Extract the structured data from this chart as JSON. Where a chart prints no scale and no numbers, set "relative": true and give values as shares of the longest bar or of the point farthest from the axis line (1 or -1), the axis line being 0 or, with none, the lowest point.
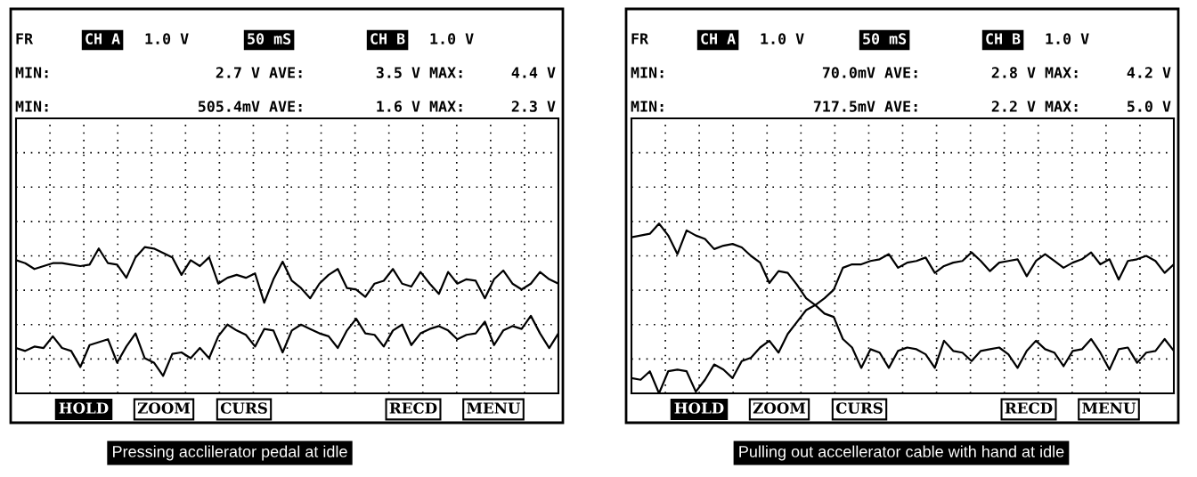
{
  "chart_data": [
    {
      "type": "line",
      "title": "Pressing acclilerator pedal at idle",
      "relative": true,
      "grid": true,
      "marker": "none",
      "line_style": "solid",
      "categories": [
        null,
        null,
        null,
        null,
        null,
        null,
        null,
        null,
        null,
        null,
        null,
        null,
        null,
        null,
        null,
        null,
        null,
        null,
        null,
        null,
        null,
        null,
        null,
        null,
        null,
        null,
        null,
        null,
        null,
        null,
        null,
        null,
        null,
        null,
        null,
        null,
        null,
        null,
        null,
        null,
        null,
        null,
        null,
        null,
        null,
        null,
        null,
        null,
        null,
        null,
        null,
        null,
        null,
        null,
        null,
        null,
        null,
        null,
        null,
        null
      ],
      "series": [
        {
          "color": "#000000",
          "values": [
            0.91,
            0.89,
            0.85,
            0.87,
            0.89,
            0.89,
            0.88,
            0.87,
            0.88,
            0.99,
            0.89,
            0.88,
            0.79,
            0.93,
            1.0,
            0.99,
            0.96,
            0.93,
            0.81,
            0.91,
            0.87,
            0.93,
            0.75,
            0.79,
            0.81,
            0.79,
            0.82,
            0.62,
            0.78,
            0.9,
            0.77,
            0.72,
            0.65,
            0.75,
            0.81,
            0.85,
            0.72,
            0.71,
            0.66,
            0.75,
            0.77,
            0.85,
            0.75,
            0.73,
            0.83,
            0.75,
            0.68,
            0.83,
            0.75,
            0.78,
            0.77,
            0.65,
            0.78,
            0.84,
            0.75,
            0.71,
            0.75,
            0.83,
            0.78,
            0.75
          ]
        },
        {
          "color": "#000000",
          "values": [
            0.31,
            0.29,
            0.32,
            0.31,
            0.39,
            0.31,
            0.29,
            0.18,
            0.33,
            0.35,
            0.37,
            0.21,
            0.32,
            0.41,
            0.24,
            0.21,
            0.12,
            0.27,
            0.28,
            0.24,
            0.31,
            0.24,
            0.39,
            0.47,
            0.43,
            0.4,
            0.32,
            0.44,
            0.43,
            0.28,
            0.43,
            0.47,
            0.44,
            0.41,
            0.39,
            0.31,
            0.43,
            0.51,
            0.41,
            0.4,
            0.32,
            0.43,
            0.47,
            0.33,
            0.41,
            0.44,
            0.46,
            0.43,
            0.37,
            0.4,
            0.41,
            0.49,
            0.33,
            0.43,
            0.46,
            0.44,
            0.53,
            0.41,
            0.31,
            0.41
          ]
        }
      ],
      "annotations": [
        "FR",
        "CH A",
        "1.0 V",
        "50 mS",
        "CH B",
        "1.0 V",
        "MIN:",
        "2.7 V",
        "AVE:",
        "3.5 V",
        "MAX:",
        "4.4 V",
        "MIN:",
        "505.4mV",
        "AVE:",
        "1.6 V",
        "MAX:",
        "2.3 V",
        "HOLD",
        "ZOOM",
        "CURS",
        "RECD",
        "MENU"
      ]
    },
    {
      "type": "line",
      "title": "Pulling out accellerator cable with hand at idle",
      "relative": true,
      "grid": true,
      "marker": "none",
      "line_style": "solid",
      "categories": [
        null,
        null,
        null,
        null,
        null,
        null,
        null,
        null,
        null,
        null,
        null,
        null,
        null,
        null,
        null,
        null,
        null,
        null,
        null,
        null,
        null,
        null,
        null,
        null,
        null,
        null,
        null,
        null,
        null,
        null,
        null,
        null,
        null,
        null,
        null,
        null,
        null,
        null,
        null,
        null,
        null,
        null,
        null,
        null,
        null,
        null,
        null,
        null,
        null,
        null,
        null,
        null,
        null,
        null,
        null,
        null,
        null,
        null,
        null,
        null
      ],
      "series": [
        {
          "color": "#000000",
          "values": [
            0.92,
            0.93,
            0.94,
            1.0,
            0.93,
            0.82,
            0.96,
            0.93,
            0.91,
            0.85,
            0.87,
            0.88,
            0.86,
            0.81,
            0.77,
            0.65,
            0.72,
            0.71,
            0.64,
            0.56,
            0.52,
            0.47,
            0.45,
            0.32,
            0.27,
            0.15,
            0.26,
            0.24,
            0.15,
            0.25,
            0.27,
            0.26,
            0.23,
            0.15,
            0.31,
            0.25,
            0.24,
            0.19,
            0.25,
            0.26,
            0.27,
            0.23,
            0.15,
            0.25,
            0.31,
            0.26,
            0.24,
            0.16,
            0.25,
            0.26,
            0.32,
            0.24,
            0.14,
            0.26,
            0.27,
            0.18,
            0.24,
            0.25,
            0.32,
            0.25
          ]
        },
        {
          "color": "#000000",
          "values": [
            0.09,
            0.08,
            0.13,
            0.0,
            0.13,
            0.14,
            0.13,
            0.01,
            0.08,
            0.17,
            0.14,
            0.09,
            0.19,
            0.21,
            0.27,
            0.31,
            0.24,
            0.35,
            0.42,
            0.49,
            0.52,
            0.56,
            0.61,
            0.74,
            0.76,
            0.76,
            0.78,
            0.79,
            0.82,
            0.74,
            0.77,
            0.78,
            0.8,
            0.71,
            0.75,
            0.77,
            0.78,
            0.83,
            0.78,
            0.72,
            0.77,
            0.78,
            0.79,
            0.69,
            0.78,
            0.82,
            0.78,
            0.74,
            0.77,
            0.79,
            0.83,
            0.76,
            0.79,
            0.67,
            0.78,
            0.79,
            0.81,
            0.78,
            0.71,
            0.76
          ]
        }
      ],
      "annotations": [
        "FR",
        "CH A",
        "1.0 V",
        "50 mS",
        "CH B",
        "1.0 V",
        "MIN:",
        "70.0mV",
        "AVE:",
        "2.8 V",
        "MAX:",
        "4.2 V",
        "MIN:",
        "717.5mV",
        "AVE:",
        "2.2 V",
        "MAX:",
        "5.0 V",
        "HOLD",
        "ZOOM",
        "CURS",
        "RECD",
        "MENU"
      ]
    }
  ]
}
